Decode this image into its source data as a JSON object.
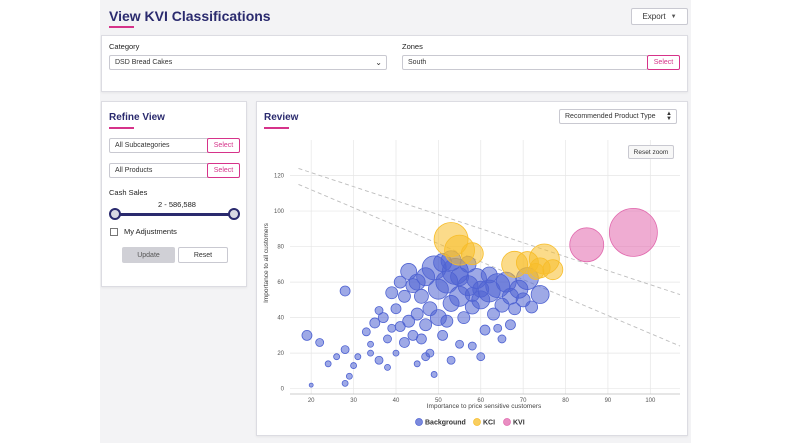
{
  "header": {
    "title": "View KVI Classifications",
    "export_label": "Export"
  },
  "filters": {
    "category_label": "Category",
    "category_value": "DSD Bread Cakes",
    "zones_label": "Zones",
    "zones_value": "South",
    "zones_select": "Select"
  },
  "refine": {
    "title": "Refine View",
    "subcategories_value": "All Subcategories",
    "subcategories_select": "Select",
    "products_value": "All Products",
    "products_select": "Select",
    "cash_sales_label": "Cash Sales",
    "range_text": "2 - 586,588",
    "range_fraction": [
      0,
      1
    ],
    "adjustments_label": "My Adjustments",
    "adjustments_checked": false,
    "update_label": "Update",
    "reset_label": "Reset"
  },
  "review": {
    "title": "Review",
    "type_select": "Recommended Product Type",
    "reset_zoom_label": "Reset zoom"
  },
  "colors": {
    "accent": "#d6338a",
    "navy": "#2a2a6e",
    "background": "#4f63d2",
    "kci": "#f7bd2a",
    "kvi": "#e168ad"
  },
  "chart_data": {
    "type": "scatter",
    "xlabel": "Importance to price sensitive customers",
    "ylabel": "Importance to all customers",
    "xlim": [
      15,
      107
    ],
    "ylim": [
      -3,
      140
    ],
    "x_ticks": [
      20,
      30,
      40,
      50,
      60,
      70,
      80,
      90,
      100
    ],
    "y_ticks": [
      0,
      20,
      40,
      60,
      80,
      100,
      120
    ],
    "grid": true,
    "legend_position": "bottom",
    "reference_lines": [
      {
        "x": [
          17,
          107
        ],
        "y": [
          124,
          53
        ]
      },
      {
        "x": [
          17,
          107
        ],
        "y": [
          115,
          24
        ]
      }
    ],
    "series": [
      {
        "name": "Background",
        "color": "#4f63d2",
        "points": [
          [
            20,
            2,
            2
          ],
          [
            24,
            14,
            3
          ],
          [
            19,
            30,
            5
          ],
          [
            22,
            26,
            4
          ],
          [
            26,
            18,
            3
          ],
          [
            28,
            22,
            4
          ],
          [
            30,
            13,
            3
          ],
          [
            29,
            7,
            3
          ],
          [
            28,
            3,
            3
          ],
          [
            31,
            18,
            3
          ],
          [
            34,
            20,
            3
          ],
          [
            33,
            32,
            4
          ],
          [
            35,
            37,
            5
          ],
          [
            34,
            25,
            3
          ],
          [
            38,
            28,
            4
          ],
          [
            37,
            40,
            5
          ],
          [
            39,
            34,
            4
          ],
          [
            36,
            16,
            4
          ],
          [
            38,
            12,
            3
          ],
          [
            40,
            20,
            3
          ],
          [
            42,
            26,
            5
          ],
          [
            40,
            45,
            5
          ],
          [
            43,
            38,
            6
          ],
          [
            45,
            42,
            6
          ],
          [
            44,
            30,
            5
          ],
          [
            47,
            36,
            6
          ],
          [
            48,
            45,
            7
          ],
          [
            50,
            40,
            8
          ],
          [
            46,
            52,
            7
          ],
          [
            42,
            52,
            6
          ],
          [
            44,
            58,
            7
          ],
          [
            41,
            60,
            6
          ],
          [
            43,
            66,
            8
          ],
          [
            47,
            63,
            9
          ],
          [
            50,
            56,
            10
          ],
          [
            49,
            68,
            12
          ],
          [
            52,
            60,
            11
          ],
          [
            54,
            66,
            13
          ],
          [
            55,
            52,
            10
          ],
          [
            57,
            58,
            10
          ],
          [
            58,
            46,
            7
          ],
          [
            60,
            50,
            9
          ],
          [
            62,
            55,
            11
          ],
          [
            59,
            62,
            10
          ],
          [
            64,
            58,
            12
          ],
          [
            66,
            60,
            10
          ],
          [
            67,
            52,
            8
          ],
          [
            69,
            56,
            9
          ],
          [
            71,
            62,
            11
          ],
          [
            74,
            53,
            9
          ],
          [
            63,
            42,
            6
          ],
          [
            61,
            33,
            5
          ],
          [
            65,
            28,
            4
          ],
          [
            60,
            18,
            4
          ],
          [
            55,
            25,
            4
          ],
          [
            52,
            38,
            6
          ],
          [
            51,
            30,
            5
          ],
          [
            48,
            20,
            4
          ],
          [
            45,
            14,
            3
          ],
          [
            56,
            40,
            6
          ],
          [
            53,
            48,
            8
          ],
          [
            65,
            47,
            7
          ],
          [
            68,
            45,
            6
          ],
          [
            49,
            8,
            3
          ],
          [
            47,
            18,
            4
          ],
          [
            53,
            16,
            4
          ],
          [
            58,
            24,
            4
          ],
          [
            46,
            28,
            5
          ],
          [
            41,
            35,
            5
          ],
          [
            39,
            54,
            6
          ],
          [
            45,
            60,
            8
          ],
          [
            51,
            71,
            9
          ],
          [
            57,
            70,
            8
          ],
          [
            62,
            64,
            8
          ],
          [
            70,
            50,
            7
          ],
          [
            72,
            46,
            6
          ],
          [
            67,
            36,
            5
          ],
          [
            64,
            34,
            4
          ],
          [
            36,
            44,
            4
          ],
          [
            28,
            55,
            5
          ],
          [
            53,
            72,
            10
          ],
          [
            55,
            63,
            9
          ],
          [
            60,
            56,
            8
          ],
          [
            58,
            53,
            7
          ]
        ]
      },
      {
        "name": "KCI",
        "color": "#f7bd2a",
        "points": [
          [
            53,
            84,
            17
          ],
          [
            55,
            78,
            15
          ],
          [
            58,
            76,
            11
          ],
          [
            68,
            70,
            13
          ],
          [
            71,
            71,
            11
          ],
          [
            74,
            68,
            10
          ],
          [
            75,
            73,
            15
          ],
          [
            77,
            67,
            10
          ],
          [
            73,
            66,
            8
          ]
        ]
      },
      {
        "name": "KVI",
        "color": "#e168ad",
        "points": [
          [
            85,
            81,
            17
          ],
          [
            96,
            88,
            24
          ]
        ]
      }
    ]
  }
}
